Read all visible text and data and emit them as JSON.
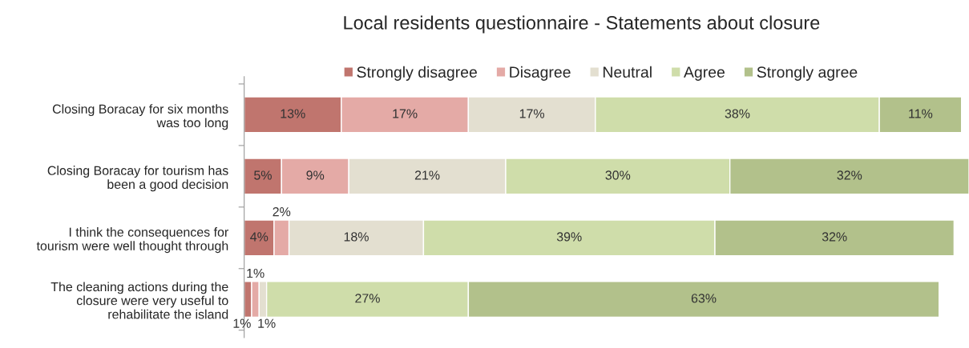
{
  "chart_data": {
    "type": "bar",
    "orientation": "horizontal",
    "stacked": true,
    "title": "Local residents questionnaire - Statements about closure",
    "categories": [
      "Closing Boracay for six months\nwas too long",
      "Closing Boracay for tourism has\nbeen a good decision",
      "I think the consequences for\ntourism were well thought through",
      "The cleaning actions during the\nclosure were very useful to\nrehabilitate the island"
    ],
    "series": [
      {
        "name": "Strongly disagree",
        "color": "#c0756e",
        "values": [
          13,
          5,
          4,
          1
        ],
        "value_labels": [
          "13%",
          "5%",
          "4%",
          "1%"
        ]
      },
      {
        "name": "Disagree",
        "color": "#e4aaa6",
        "values": [
          17,
          9,
          2,
          1
        ],
        "value_labels": [
          "17%",
          "9%",
          "2%",
          "1%"
        ]
      },
      {
        "name": "Neutral",
        "color": "#e3dfd0",
        "values": [
          17,
          21,
          18,
          1
        ],
        "value_labels": [
          "17%",
          "21%",
          "18%",
          "1%"
        ]
      },
      {
        "name": "Agree",
        "color": "#cfddaa",
        "values": [
          38,
          30,
          39,
          27
        ],
        "value_labels": [
          "38%",
          "30%",
          "39%",
          "27%"
        ]
      },
      {
        "name": "Strongly agree",
        "color": "#b2c18b",
        "values": [
          11,
          32,
          32,
          63
        ],
        "value_labels": [
          "11%",
          "32%",
          "32%",
          "63%"
        ]
      }
    ],
    "legend": "top",
    "grid": false
  }
}
